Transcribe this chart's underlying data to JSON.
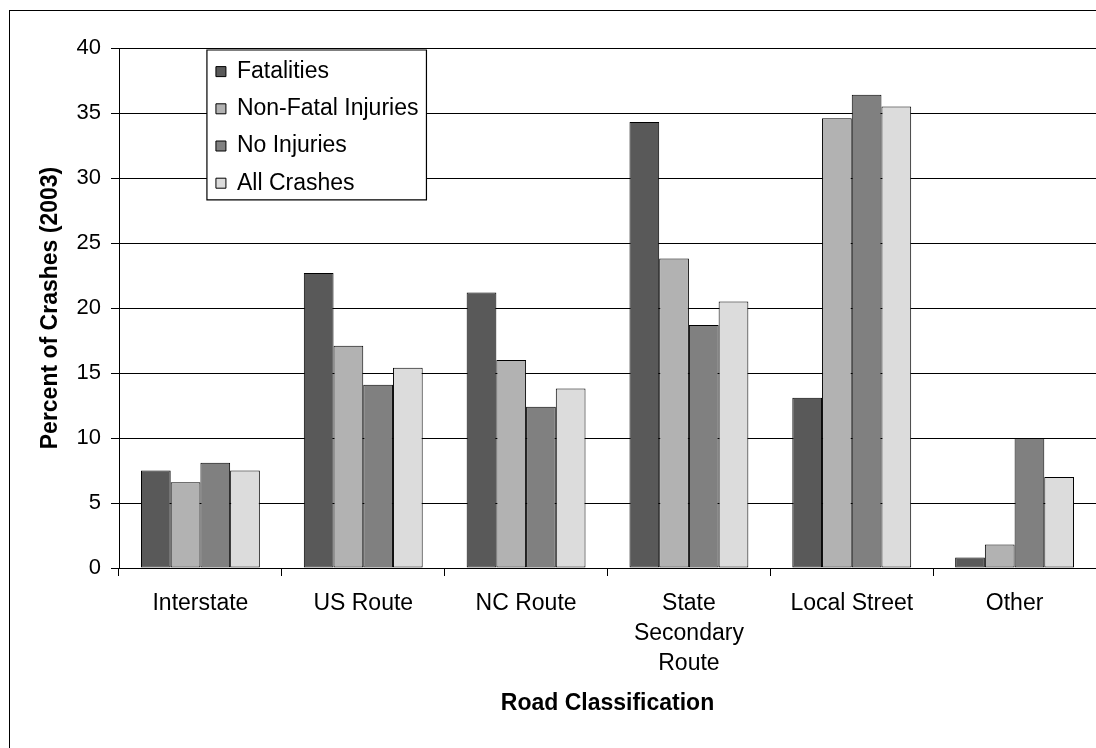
{
  "chart_data": {
    "type": "bar",
    "xlabel": "Road Classification",
    "ylabel": "Percent of Crashes (2003)",
    "categories": [
      "Interstate",
      "US Route",
      "NC Route",
      "State Secondary Route",
      "Local Street",
      "Other"
    ],
    "series": [
      {
        "name": "Fatalities",
        "color": "#595959",
        "values": [
          7.5,
          22.7,
          21.2,
          34.3,
          13.1,
          0.8
        ]
      },
      {
        "name": "Non-Fatal Injuries",
        "color": "#b2b2b2",
        "values": [
          6.6,
          17.1,
          16.0,
          23.8,
          34.6,
          1.8
        ]
      },
      {
        "name": "No Injuries",
        "color": "#808080",
        "values": [
          8.1,
          14.1,
          12.4,
          18.7,
          36.4,
          10.0
        ]
      },
      {
        "name": "All Crashes",
        "color": "#dcdcdc",
        "values": [
          7.5,
          15.4,
          13.8,
          20.5,
          35.5,
          7.0
        ]
      }
    ],
    "ylim": [
      0,
      40
    ],
    "yticks": [
      0,
      5,
      10,
      15,
      20,
      25,
      30,
      35,
      40
    ],
    "grid": "y",
    "legend": "top left"
  }
}
